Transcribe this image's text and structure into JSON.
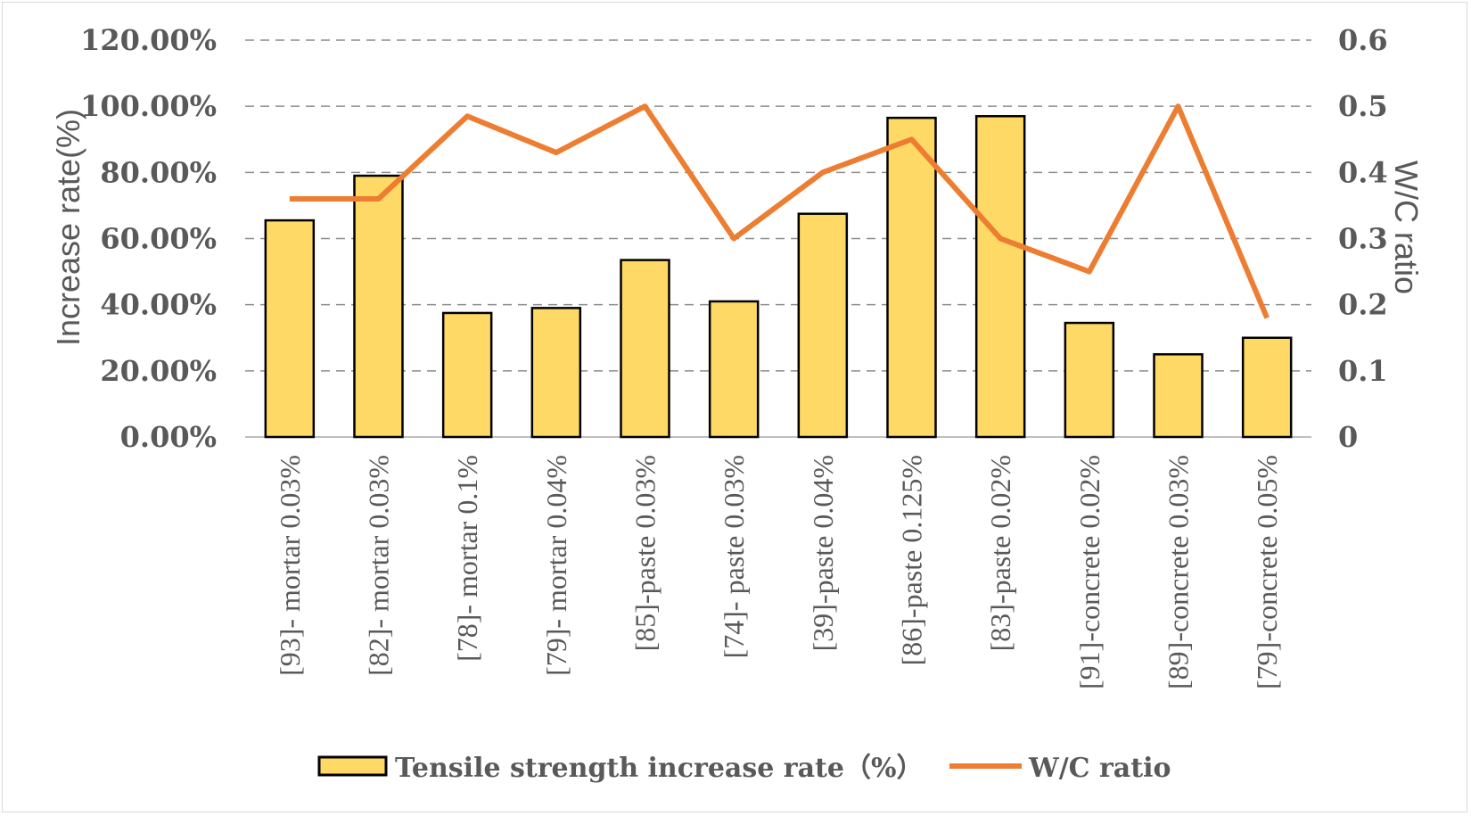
{
  "chart_data": {
    "type": "bar+line",
    "categories": [
      "[93]- mortar 0.03%",
      "[82]- mortar 0.03%",
      "[78]- mortar 0.1%",
      "[79]- mortar 0.04%",
      "[85]-paste 0.03%",
      "[74]- paste 0.03%",
      "[39]-paste 0.04%",
      "[86]-paste 0.125%",
      "[83]-paste 0.02%",
      "[91]-concrete 0.02%",
      "[89]-concrete 0.03%",
      "[79]-concrete 0.05%"
    ],
    "series": [
      {
        "name": "Tensile strength increase rate（%）",
        "type": "bar",
        "axis": "left",
        "color": "#ffd966",
        "values": [
          65.5,
          79,
          37.5,
          39,
          53.5,
          41,
          67.5,
          96.5,
          97,
          34.5,
          25,
          30
        ]
      },
      {
        "name": "W/C ratio",
        "type": "line",
        "axis": "right",
        "color": "#ed7d31",
        "values": [
          0.36,
          0.36,
          0.485,
          0.43,
          0.5,
          0.3,
          0.4,
          0.45,
          0.3,
          0.25,
          0.5,
          0.18
        ]
      }
    ],
    "left_axis": {
      "label": "Increase rate(%)",
      "range": [
        0,
        120
      ],
      "ticks": [
        "0.00%",
        "20.00%",
        "40.00%",
        "60.00%",
        "80.00%",
        "100.00%",
        "120.00%"
      ]
    },
    "right_axis": {
      "label": "W/C ratio",
      "range": [
        0,
        0.6
      ],
      "ticks": [
        "0",
        "0.1",
        "0.2",
        "0.3",
        "0.4",
        "0.5",
        "0.6"
      ]
    },
    "legend": {
      "position": "bottom",
      "items": [
        "Tensile strength increase rate（%）",
        "W/C ratio"
      ]
    },
    "grid": "horizontal-dashed"
  }
}
